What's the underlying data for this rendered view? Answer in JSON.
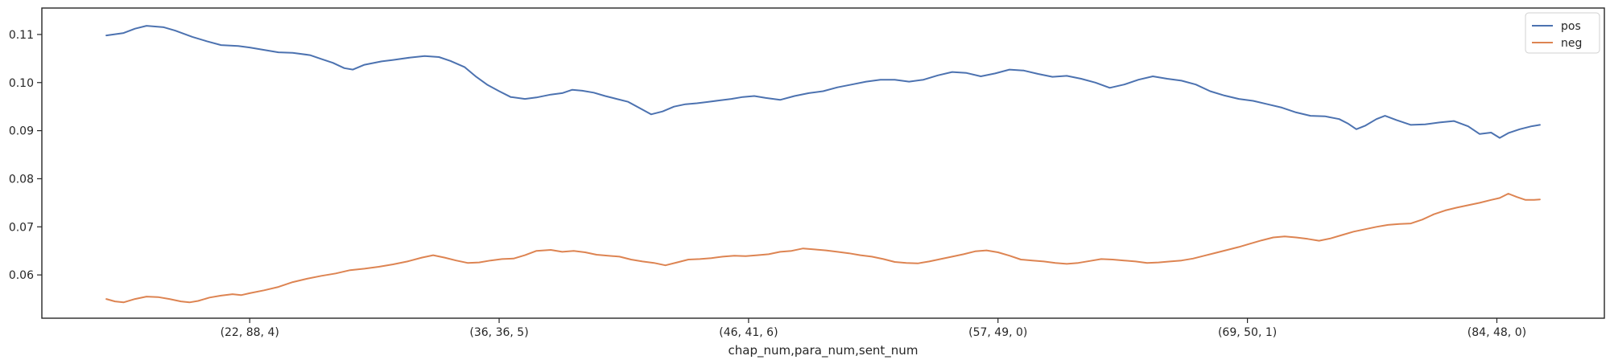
{
  "chart_data": {
    "type": "line",
    "xlabel": "chap_num,para_num,sent_num",
    "ylabel": "",
    "x_range": [
      0,
      1000
    ],
    "xlim": [
      -45,
      1045
    ],
    "ylim": [
      0.051,
      0.1155
    ],
    "x_ticks": [
      {
        "x": 100,
        "label": "(22, 88, 4)"
      },
      {
        "x": 274,
        "label": "(36, 36, 5)"
      },
      {
        "x": 448,
        "label": "(46, 41, 6)"
      },
      {
        "x": 622,
        "label": "(57, 49, 0)"
      },
      {
        "x": 796,
        "label": "(69, 50, 1)"
      },
      {
        "x": 970,
        "label": "(84, 48, 0)"
      }
    ],
    "y_ticks": [
      {
        "value": 0.06,
        "label": "0.06"
      },
      {
        "value": 0.07,
        "label": "0.07"
      },
      {
        "value": 0.08,
        "label": "0.08"
      },
      {
        "value": 0.09,
        "label": "0.09"
      },
      {
        "value": 0.1,
        "label": "0.10"
      },
      {
        "value": 0.11,
        "label": "0.11"
      }
    ],
    "grid": false,
    "legend_position": "top-right",
    "series": [
      {
        "name": "pos",
        "color": "#4c72b0",
        "points": [
          [
            0,
            0.1098
          ],
          [
            12,
            0.1103
          ],
          [
            20,
            0.1112
          ],
          [
            28,
            0.1118
          ],
          [
            40,
            0.1115
          ],
          [
            48,
            0.1108
          ],
          [
            60,
            0.1095
          ],
          [
            70,
            0.1086
          ],
          [
            80,
            0.1078
          ],
          [
            92,
            0.1076
          ],
          [
            100,
            0.1073
          ],
          [
            110,
            0.1068
          ],
          [
            120,
            0.1063
          ],
          [
            130,
            0.1062
          ],
          [
            142,
            0.1057
          ],
          [
            150,
            0.1049
          ],
          [
            158,
            0.1041
          ],
          [
            166,
            0.103
          ],
          [
            172,
            0.1027
          ],
          [
            180,
            0.1037
          ],
          [
            192,
            0.1044
          ],
          [
            200,
            0.1047
          ],
          [
            212,
            0.1052
          ],
          [
            222,
            0.1055
          ],
          [
            232,
            0.1053
          ],
          [
            240,
            0.1045
          ],
          [
            250,
            0.1032
          ],
          [
            258,
            0.1012
          ],
          [
            266,
            0.0995
          ],
          [
            274,
            0.0982
          ],
          [
            282,
            0.097
          ],
          [
            292,
            0.0966
          ],
          [
            300,
            0.0969
          ],
          [
            310,
            0.0975
          ],
          [
            318,
            0.0978
          ],
          [
            325,
            0.0985
          ],
          [
            332,
            0.0983
          ],
          [
            340,
            0.0979
          ],
          [
            348,
            0.0972
          ],
          [
            356,
            0.0966
          ],
          [
            364,
            0.096
          ],
          [
            372,
            0.0947
          ],
          [
            380,
            0.0934
          ],
          [
            388,
            0.094
          ],
          [
            396,
            0.095
          ],
          [
            404,
            0.0955
          ],
          [
            412,
            0.0957
          ],
          [
            420,
            0.096
          ],
          [
            428,
            0.0963
          ],
          [
            436,
            0.0966
          ],
          [
            444,
            0.097
          ],
          [
            452,
            0.0972
          ],
          [
            460,
            0.0968
          ],
          [
            470,
            0.0964
          ],
          [
            480,
            0.0972
          ],
          [
            490,
            0.0978
          ],
          [
            500,
            0.0982
          ],
          [
            510,
            0.099
          ],
          [
            520,
            0.0996
          ],
          [
            530,
            0.1002
          ],
          [
            540,
            0.1006
          ],
          [
            550,
            0.1006
          ],
          [
            560,
            0.1002
          ],
          [
            570,
            0.1006
          ],
          [
            580,
            0.1015
          ],
          [
            590,
            0.1022
          ],
          [
            600,
            0.102
          ],
          [
            610,
            0.1013
          ],
          [
            620,
            0.1019
          ],
          [
            630,
            0.1027
          ],
          [
            640,
            0.1025
          ],
          [
            650,
            0.1018
          ],
          [
            660,
            0.1012
          ],
          [
            670,
            0.1014
          ],
          [
            680,
            0.1008
          ],
          [
            690,
            0.1
          ],
          [
            700,
            0.0989
          ],
          [
            710,
            0.0996
          ],
          [
            720,
            0.1006
          ],
          [
            730,
            0.1013
          ],
          [
            740,
            0.1008
          ],
          [
            750,
            0.1004
          ],
          [
            760,
            0.0996
          ],
          [
            770,
            0.0982
          ],
          [
            780,
            0.0973
          ],
          [
            790,
            0.0966
          ],
          [
            800,
            0.0962
          ],
          [
            810,
            0.0955
          ],
          [
            820,
            0.0948
          ],
          [
            830,
            0.0938
          ],
          [
            840,
            0.0931
          ],
          [
            850,
            0.093
          ],
          [
            860,
            0.0924
          ],
          [
            866,
            0.0915
          ],
          [
            872,
            0.0903
          ],
          [
            878,
            0.091
          ],
          [
            886,
            0.0924
          ],
          [
            892,
            0.0931
          ],
          [
            900,
            0.0922
          ],
          [
            910,
            0.0912
          ],
          [
            920,
            0.0913
          ],
          [
            930,
            0.0917
          ],
          [
            940,
            0.092
          ],
          [
            950,
            0.0909
          ],
          [
            958,
            0.0893
          ],
          [
            966,
            0.0896
          ],
          [
            972,
            0.0885
          ],
          [
            978,
            0.0895
          ],
          [
            986,
            0.0903
          ],
          [
            994,
            0.0909
          ],
          [
            1000,
            0.0912
          ]
        ]
      },
      {
        "name": "neg",
        "color": "#dd8452",
        "points": [
          [
            0,
            0.055
          ],
          [
            6,
            0.0545
          ],
          [
            12,
            0.0543
          ],
          [
            20,
            0.055
          ],
          [
            28,
            0.0555
          ],
          [
            36,
            0.0554
          ],
          [
            44,
            0.055
          ],
          [
            52,
            0.0545
          ],
          [
            58,
            0.0543
          ],
          [
            64,
            0.0546
          ],
          [
            72,
            0.0553
          ],
          [
            80,
            0.0557
          ],
          [
            88,
            0.056
          ],
          [
            94,
            0.0558
          ],
          [
            100,
            0.0562
          ],
          [
            110,
            0.0568
          ],
          [
            120,
            0.0575
          ],
          [
            130,
            0.0585
          ],
          [
            140,
            0.0592
          ],
          [
            150,
            0.0598
          ],
          [
            160,
            0.0603
          ],
          [
            170,
            0.061
          ],
          [
            180,
            0.0613
          ],
          [
            190,
            0.0617
          ],
          [
            200,
            0.0622
          ],
          [
            210,
            0.0628
          ],
          [
            220,
            0.0636
          ],
          [
            228,
            0.0641
          ],
          [
            236,
            0.0636
          ],
          [
            244,
            0.063
          ],
          [
            252,
            0.0625
          ],
          [
            260,
            0.0626
          ],
          [
            268,
            0.063
          ],
          [
            276,
            0.0633
          ],
          [
            284,
            0.0634
          ],
          [
            292,
            0.0641
          ],
          [
            300,
            0.065
          ],
          [
            310,
            0.0652
          ],
          [
            318,
            0.0648
          ],
          [
            326,
            0.065
          ],
          [
            334,
            0.0647
          ],
          [
            342,
            0.0642
          ],
          [
            350,
            0.064
          ],
          [
            358,
            0.0638
          ],
          [
            366,
            0.0632
          ],
          [
            374,
            0.0628
          ],
          [
            382,
            0.0625
          ],
          [
            390,
            0.062
          ],
          [
            398,
            0.0626
          ],
          [
            406,
            0.0632
          ],
          [
            414,
            0.0633
          ],
          [
            422,
            0.0635
          ],
          [
            430,
            0.0638
          ],
          [
            438,
            0.064
          ],
          [
            446,
            0.0639
          ],
          [
            454,
            0.0641
          ],
          [
            462,
            0.0643
          ],
          [
            470,
            0.0648
          ],
          [
            478,
            0.065
          ],
          [
            486,
            0.0655
          ],
          [
            494,
            0.0653
          ],
          [
            502,
            0.0651
          ],
          [
            510,
            0.0648
          ],
          [
            518,
            0.0645
          ],
          [
            526,
            0.0641
          ],
          [
            534,
            0.0638
          ],
          [
            542,
            0.0633
          ],
          [
            550,
            0.0627
          ],
          [
            558,
            0.0625
          ],
          [
            566,
            0.0624
          ],
          [
            574,
            0.0628
          ],
          [
            582,
            0.0633
          ],
          [
            590,
            0.0638
          ],
          [
            598,
            0.0643
          ],
          [
            606,
            0.0649
          ],
          [
            614,
            0.0651
          ],
          [
            622,
            0.0647
          ],
          [
            630,
            0.064
          ],
          [
            638,
            0.0632
          ],
          [
            646,
            0.063
          ],
          [
            654,
            0.0628
          ],
          [
            662,
            0.0625
          ],
          [
            670,
            0.0623
          ],
          [
            678,
            0.0625
          ],
          [
            686,
            0.0629
          ],
          [
            694,
            0.0633
          ],
          [
            702,
            0.0632
          ],
          [
            710,
            0.063
          ],
          [
            718,
            0.0628
          ],
          [
            726,
            0.0625
          ],
          [
            734,
            0.0626
          ],
          [
            742,
            0.0628
          ],
          [
            750,
            0.063
          ],
          [
            758,
            0.0634
          ],
          [
            766,
            0.064
          ],
          [
            774,
            0.0646
          ],
          [
            782,
            0.0652
          ],
          [
            790,
            0.0658
          ],
          [
            798,
            0.0665
          ],
          [
            806,
            0.0672
          ],
          [
            814,
            0.0678
          ],
          [
            822,
            0.068
          ],
          [
            830,
            0.0678
          ],
          [
            838,
            0.0675
          ],
          [
            846,
            0.0671
          ],
          [
            854,
            0.0676
          ],
          [
            862,
            0.0683
          ],
          [
            870,
            0.069
          ],
          [
            878,
            0.0695
          ],
          [
            886,
            0.07
          ],
          [
            894,
            0.0704
          ],
          [
            902,
            0.0706
          ],
          [
            910,
            0.0707
          ],
          [
            918,
            0.0715
          ],
          [
            926,
            0.0726
          ],
          [
            934,
            0.0734
          ],
          [
            942,
            0.074
          ],
          [
            950,
            0.0745
          ],
          [
            958,
            0.075
          ],
          [
            966,
            0.0756
          ],
          [
            972,
            0.076
          ],
          [
            978,
            0.0769
          ],
          [
            984,
            0.0762
          ],
          [
            990,
            0.0756
          ],
          [
            996,
            0.0756
          ],
          [
            1000,
            0.0757
          ]
        ]
      }
    ]
  }
}
